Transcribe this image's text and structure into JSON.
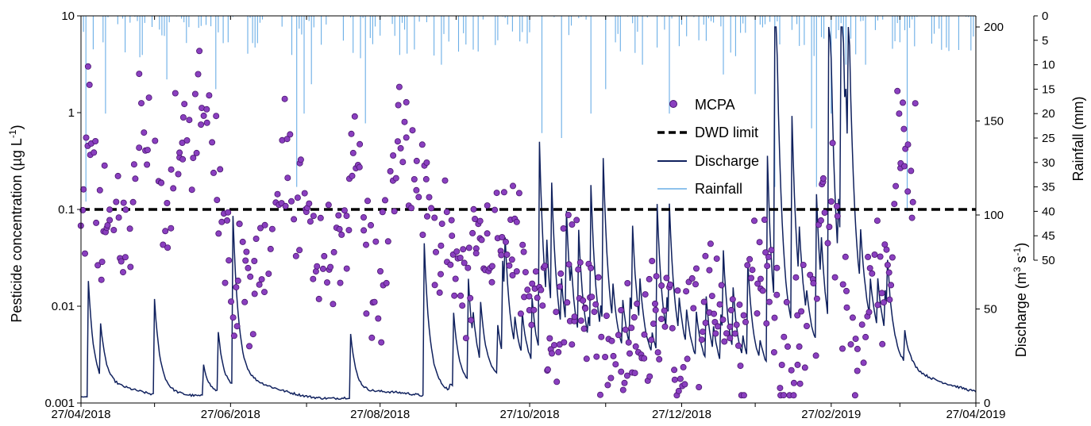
{
  "chart_data": {
    "type": "scatter",
    "title": "",
    "x_tick_labels": [
      "27/04/2018",
      "27/06/2018",
      "27/08/2018",
      "27/10/2018",
      "27/12/2018",
      "27/02/2019",
      "27/04/2019"
    ],
    "y_left": {
      "label_prefix": "Pesticide concentration (µg L",
      "label_sup": "-1",
      "label_suffix": ")",
      "scale": "log",
      "range": [
        0.001,
        10
      ],
      "tick_labels": [
        "10",
        "1",
        "0.1",
        "0.01",
        "0.001"
      ]
    },
    "y_right_discharge": {
      "label_prefix": "Discharge (m",
      "label_sup1": "3",
      "label_mid": " s",
      "label_sup2": "-1",
      "label_suffix": ")",
      "range": [
        0,
        200
      ],
      "tick_labels": [
        "0",
        "50",
        "100",
        "150",
        "200"
      ]
    },
    "y_right_rainfall": {
      "label": "Rainfall (mm)",
      "range": [
        0,
        50
      ],
      "inverted": true,
      "tick_labels": [
        "0",
        "5",
        "10",
        "15",
        "20",
        "25",
        "30",
        "35",
        "40",
        "45",
        "50"
      ]
    },
    "dwd_limit": 0.1,
    "legend": {
      "position": "top-right",
      "items": [
        "MCPA",
        "DWD limit",
        "Discharge",
        "Rainfall"
      ]
    },
    "colors": {
      "mcpa_fill": "#8a3fbf",
      "mcpa_stroke": "#4a1670",
      "dwd": "#000000",
      "discharge": "#10215e",
      "rainfall": "#6aaee6"
    },
    "mcpa_anchors": [
      [
        0,
        0.03
      ],
      [
        3,
        1.1
      ],
      [
        5,
        0.2
      ],
      [
        8,
        0.05
      ],
      [
        12,
        0.07
      ],
      [
        15,
        0.1
      ],
      [
        20,
        0.035
      ],
      [
        24,
        3.6
      ],
      [
        27,
        0.5
      ],
      [
        30,
        0.15
      ],
      [
        33,
        0.05
      ],
      [
        36,
        0.04
      ],
      [
        40,
        1.0
      ],
      [
        44,
        0.3
      ],
      [
        48,
        0.9
      ],
      [
        52,
        0.8
      ],
      [
        56,
        0.2
      ],
      [
        58,
        0.05
      ],
      [
        61,
        0.03
      ],
      [
        64,
        0.015
      ],
      [
        68,
        0.02
      ],
      [
        72,
        0.012
      ],
      [
        76,
        0.03
      ],
      [
        80,
        0.15
      ],
      [
        84,
        0.3
      ],
      [
        88,
        0.1
      ],
      [
        92,
        0.07
      ],
      [
        96,
        0.05
      ],
      [
        100,
        0.025
      ],
      [
        103,
        0.018
      ],
      [
        106,
        0.04
      ],
      [
        110,
        0.3
      ],
      [
        114,
        0.1
      ],
      [
        118,
        0.03
      ],
      [
        122,
        0.015
      ],
      [
        126,
        0.05
      ],
      [
        130,
        0.8
      ],
      [
        134,
        0.4
      ],
      [
        138,
        0.2
      ],
      [
        142,
        0.1
      ],
      [
        146,
        0.06
      ],
      [
        150,
        0.04
      ],
      [
        154,
        0.018
      ],
      [
        158,
        0.015
      ],
      [
        162,
        0.03
      ],
      [
        166,
        0.06
      ],
      [
        170,
        0.04
      ],
      [
        174,
        0.06
      ],
      [
        178,
        0.03
      ],
      [
        182,
        0.015
      ],
      [
        186,
        0.01
      ],
      [
        190,
        0.006
      ],
      [
        194,
        0.004
      ],
      [
        198,
        0.03
      ],
      [
        202,
        0.015
      ],
      [
        206,
        0.008
      ],
      [
        210,
        0.007
      ],
      [
        214,
        0.006
      ],
      [
        218,
        0.005
      ],
      [
        222,
        0.004
      ],
      [
        226,
        0.005
      ],
      [
        230,
        0.006
      ],
      [
        234,
        0.007
      ],
      [
        238,
        0.006
      ],
      [
        242,
        0.005
      ],
      [
        246,
        0.006
      ],
      [
        250,
        0.005
      ],
      [
        254,
        0.008
      ],
      [
        258,
        0.02
      ],
      [
        262,
        0.01
      ],
      [
        266,
        0.004
      ],
      [
        270,
        0.003
      ],
      [
        274,
        0.02
      ],
      [
        278,
        0.03
      ],
      [
        282,
        0.01
      ],
      [
        286,
        0.003
      ],
      [
        289,
        0.002
      ],
      [
        292,
        0.004
      ],
      [
        295,
        0.005
      ],
      [
        298,
        0.004
      ],
      [
        302,
        0.05
      ],
      [
        306,
        0.15
      ],
      [
        309,
        0.03
      ],
      [
        312,
        0.008
      ],
      [
        315,
        0.004
      ],
      [
        318,
        0.005
      ],
      [
        322,
        0.015
      ],
      [
        326,
        0.02
      ],
      [
        330,
        0.01
      ],
      [
        333,
        0.5
      ],
      [
        336,
        0.8
      ],
      [
        338,
        0.15
      ],
      [
        340,
        0.5
      ]
    ],
    "discharge_events": [
      [
        3,
        55
      ],
      [
        8,
        25
      ],
      [
        30,
        45
      ],
      [
        50,
        15
      ],
      [
        56,
        28
      ],
      [
        62,
        80
      ],
      [
        110,
        30
      ],
      [
        140,
        72
      ],
      [
        152,
        35
      ],
      [
        158,
        48
      ],
      [
        172,
        45
      ],
      [
        180,
        20
      ],
      [
        187,
        100
      ],
      [
        192,
        60
      ],
      [
        198,
        55
      ],
      [
        203,
        50
      ],
      [
        208,
        70
      ],
      [
        213,
        80
      ],
      [
        225,
        45
      ],
      [
        235,
        70
      ],
      [
        240,
        55
      ],
      [
        255,
        30
      ],
      [
        262,
        40
      ],
      [
        272,
        45
      ],
      [
        280,
        70
      ],
      [
        283,
        175
      ],
      [
        290,
        75
      ],
      [
        300,
        70
      ],
      [
        305,
        170
      ],
      [
        310,
        170
      ],
      [
        313,
        90
      ],
      [
        328,
        20
      ],
      [
        336,
        15
      ]
    ],
    "rainfall_events": [
      [
        2,
        38
      ],
      [
        10,
        20
      ],
      [
        25,
        8
      ],
      [
        35,
        13
      ],
      [
        55,
        15
      ],
      [
        86,
        8
      ],
      [
        88,
        35
      ],
      [
        91,
        20
      ],
      [
        94,
        14
      ],
      [
        116,
        22
      ],
      [
        130,
        8
      ],
      [
        147,
        10
      ],
      [
        170,
        5
      ],
      [
        188,
        24
      ],
      [
        196,
        25
      ],
      [
        208,
        20
      ],
      [
        214,
        15
      ],
      [
        229,
        10
      ],
      [
        240,
        20
      ],
      [
        252,
        5
      ],
      [
        262,
        12
      ],
      [
        275,
        16
      ],
      [
        283,
        35
      ],
      [
        298,
        23
      ],
      [
        300,
        35
      ],
      [
        306,
        20
      ],
      [
        312,
        10
      ],
      [
        320,
        10
      ],
      [
        337,
        40
      ]
    ]
  }
}
